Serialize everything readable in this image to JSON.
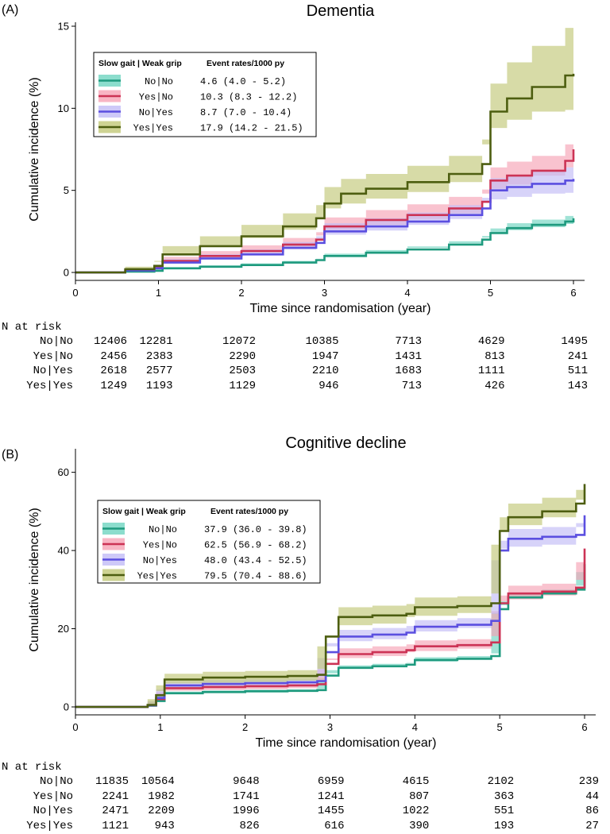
{
  "chart_data": [
    {
      "type": "line",
      "panel_label": "(A)",
      "title": "Dementia",
      "xlabel": "Time since randomisation (year)",
      "ylabel": "Cumulative incidence (%)",
      "xlim": [
        0,
        6
      ],
      "ylim": [
        0,
        15
      ],
      "xticks": [
        "0",
        "1",
        "2",
        "3",
        "4",
        "5",
        "6"
      ],
      "yticks": [
        "0",
        "5",
        "10",
        "15"
      ],
      "legend": {
        "placement": "top-left",
        "header_group": "Slow gait | Weak grip",
        "header_rate": "Event rates/1000 py",
        "entries": [
          {
            "label": "No|No",
            "rate": "4.6 (4.0 - 5.2)"
          },
          {
            "label": "Yes|No",
            "rate": "10.3 (8.3 - 12.2)"
          },
          {
            "label": "No|Yes",
            "rate": "8.7 (7.0 - 10.4)"
          },
          {
            "label": "Yes|Yes",
            "rate": "17.9 (14.2 - 21.5)"
          }
        ]
      },
      "series": [
        {
          "name": "No|No",
          "color": "#1e9a7e",
          "band": "#6fd4c0",
          "x": [
            0,
            0.6,
            0.95,
            1.05,
            1.5,
            2.0,
            2.5,
            2.9,
            3.0,
            3.5,
            4.0,
            4.5,
            4.9,
            5.0,
            5.2,
            5.5,
            5.9,
            6.0
          ],
          "y": [
            0,
            0.05,
            0.1,
            0.25,
            0.35,
            0.45,
            0.6,
            0.75,
            1.0,
            1.2,
            1.4,
            1.7,
            2.0,
            2.4,
            2.7,
            2.9,
            3.1,
            3.3
          ],
          "lower": [
            0,
            0.02,
            0.06,
            0.18,
            0.27,
            0.36,
            0.5,
            0.63,
            0.86,
            1.04,
            1.22,
            1.5,
            1.78,
            2.12,
            2.4,
            2.58,
            2.76,
            2.95
          ],
          "upper": [
            0,
            0.08,
            0.14,
            0.32,
            0.43,
            0.55,
            0.7,
            0.87,
            1.14,
            1.36,
            1.58,
            1.9,
            2.22,
            2.68,
            3.0,
            3.22,
            3.44,
            3.7
          ]
        },
        {
          "name": "Yes|No",
          "color": "#cc3355",
          "band": "#f6a3b5",
          "x": [
            0,
            0.6,
            0.95,
            1.05,
            1.5,
            2.0,
            2.5,
            2.9,
            3.0,
            3.5,
            4.0,
            4.5,
            4.9,
            5.0,
            5.2,
            5.5,
            5.9,
            6.0
          ],
          "y": [
            0,
            0.15,
            0.3,
            0.7,
            1.0,
            1.3,
            1.7,
            2.0,
            2.8,
            3.2,
            3.5,
            3.9,
            4.3,
            5.6,
            5.9,
            6.2,
            6.8,
            7.5
          ],
          "lower": [
            0,
            0.05,
            0.15,
            0.45,
            0.7,
            0.95,
            1.3,
            1.55,
            2.25,
            2.6,
            2.9,
            3.25,
            3.6,
            4.8,
            5.1,
            5.35,
            5.9,
            6.4
          ],
          "upper": [
            0,
            0.25,
            0.45,
            0.95,
            1.3,
            1.65,
            2.1,
            2.45,
            3.35,
            3.8,
            4.15,
            4.6,
            5.05,
            6.4,
            6.75,
            7.1,
            7.8,
            9.4
          ]
        },
        {
          "name": "No|Yes",
          "color": "#5b4fe0",
          "band": "#c2bcf6",
          "x": [
            0,
            0.6,
            0.95,
            1.05,
            1.5,
            2.0,
            2.5,
            2.9,
            3.0,
            3.5,
            4.0,
            4.5,
            4.9,
            5.0,
            5.2,
            5.5,
            5.9,
            6.0
          ],
          "y": [
            0,
            0.12,
            0.25,
            0.6,
            0.85,
            1.1,
            1.5,
            1.8,
            2.5,
            2.8,
            3.1,
            3.5,
            3.9,
            5.0,
            5.2,
            5.4,
            5.6,
            5.7
          ],
          "lower": [
            0,
            0.05,
            0.12,
            0.38,
            0.6,
            0.8,
            1.15,
            1.4,
            2.0,
            2.3,
            2.55,
            2.9,
            3.25,
            4.25,
            4.45,
            4.6,
            4.8,
            4.85
          ],
          "upper": [
            0,
            0.2,
            0.38,
            0.82,
            1.1,
            1.4,
            1.85,
            2.2,
            3.0,
            3.3,
            3.65,
            4.1,
            4.55,
            5.75,
            5.95,
            6.2,
            6.4,
            6.7
          ]
        },
        {
          "name": "Yes|Yes",
          "color": "#4d5e10",
          "band": "#c2c878",
          "x": [
            0,
            0.6,
            0.95,
            1.05,
            1.5,
            2.0,
            2.5,
            2.9,
            3.0,
            3.2,
            3.5,
            4.0,
            4.5,
            4.9,
            5.0,
            5.2,
            5.5,
            5.9,
            6.0
          ],
          "y": [
            0,
            0.2,
            0.4,
            1.1,
            1.6,
            2.2,
            2.8,
            3.3,
            4.2,
            4.8,
            5.1,
            5.5,
            6.0,
            6.6,
            9.8,
            10.6,
            11.3,
            12.0,
            12.1
          ],
          "lower": [
            0,
            0.05,
            0.15,
            0.7,
            1.1,
            1.6,
            2.1,
            2.6,
            3.3,
            3.9,
            4.2,
            4.5,
            4.9,
            5.5,
            8.1,
            8.8,
            9.3,
            9.8,
            9.9
          ],
          "upper": [
            0,
            0.35,
            0.65,
            1.6,
            2.2,
            2.9,
            3.6,
            4.1,
            5.2,
            5.7,
            6.0,
            6.5,
            7.1,
            7.8,
            11.5,
            12.8,
            13.8,
            14.9,
            15.0
          ]
        }
      ],
      "risk_table": {
        "header": "N at risk",
        "rows": [
          {
            "label": "No|No",
            "values": [
              "12406",
              "12281",
              "12072",
              "10385",
              "7713",
              "4629",
              "1495"
            ]
          },
          {
            "label": "Yes|No",
            "values": [
              "2456",
              "2383",
              "2290",
              "1947",
              "1431",
              "813",
              "241"
            ]
          },
          {
            "label": "No|Yes",
            "values": [
              "2618",
              "2577",
              "2503",
              "2210",
              "1683",
              "1111",
              "511"
            ]
          },
          {
            "label": "Yes|Yes",
            "values": [
              "1249",
              "1193",
              "1129",
              "946",
              "713",
              "426",
              "143"
            ]
          }
        ]
      }
    },
    {
      "type": "line",
      "panel_label": "(B)",
      "title": "Cognitive decline",
      "xlabel": "Time since randomisation (year)",
      "ylabel": "Cumulative incidence (%)",
      "xlim": [
        0,
        6
      ],
      "ylim": [
        0,
        65
      ],
      "xticks": [
        "0",
        "1",
        "2",
        "3",
        "4",
        "5",
        "6"
      ],
      "yticks": [
        "0",
        "20",
        "40",
        "60"
      ],
      "legend": {
        "placement": "top-left",
        "header_group": "Slow gait | Weak grip",
        "header_rate": "Event rates/1000 py",
        "entries": [
          {
            "label": "No|No",
            "rate": "37.9 (36.0 - 39.8)"
          },
          {
            "label": "Yes|No",
            "rate": "62.5 (56.9 - 68.2)"
          },
          {
            "label": "No|Yes",
            "rate": "48.0 (43.4 - 52.5)"
          },
          {
            "label": "Yes|Yes",
            "rate": "79.5 (70.4 - 88.6)"
          }
        ]
      },
      "series": [
        {
          "name": "No|No",
          "color": "#1e9a7e",
          "band": "#6fd4c0",
          "x": [
            0,
            0.85,
            0.95,
            1.05,
            1.5,
            2.0,
            2.5,
            2.85,
            2.95,
            3.1,
            3.5,
            3.9,
            4.0,
            4.5,
            4.9,
            5.0,
            5.1,
            5.5,
            5.9,
            6.0
          ],
          "y": [
            0,
            0.3,
            1.5,
            3.5,
            3.8,
            4.0,
            4.1,
            4.3,
            8.0,
            10.0,
            10.4,
            10.8,
            12.0,
            12.3,
            13.0,
            25.0,
            28.0,
            29.0,
            30.0,
            36.5
          ],
          "lower": [
            0,
            0.2,
            1.2,
            3.1,
            3.4,
            3.6,
            3.7,
            3.9,
            7.4,
            9.4,
            9.8,
            10.2,
            11.3,
            11.6,
            12.3,
            24.0,
            27.0,
            28.0,
            29.0,
            34.5
          ],
          "upper": [
            0,
            0.4,
            1.8,
            3.9,
            4.2,
            4.4,
            4.5,
            4.7,
            8.6,
            10.6,
            11.0,
            11.4,
            12.7,
            13.0,
            13.7,
            26.0,
            29.0,
            30.0,
            31.0,
            38.5
          ]
        },
        {
          "name": "Yes|No",
          "color": "#cc3355",
          "band": "#f6a3b5",
          "x": [
            0,
            0.85,
            0.95,
            1.05,
            1.5,
            2.0,
            2.5,
            2.85,
            2.95,
            3.1,
            3.5,
            3.9,
            4.0,
            4.5,
            4.9,
            5.0,
            5.1,
            5.5,
            5.9,
            6.0
          ],
          "y": [
            0,
            0.4,
            2.0,
            4.8,
            5.1,
            5.3,
            5.5,
            5.8,
            11.0,
            13.5,
            14.0,
            14.5,
            15.5,
            15.8,
            16.5,
            26.5,
            29.0,
            29.5,
            30.5,
            40.5
          ],
          "lower": [
            0,
            0.2,
            1.3,
            3.8,
            4.1,
            4.3,
            4.5,
            4.8,
            9.6,
            12.0,
            12.5,
            13.0,
            14.0,
            14.3,
            14.9,
            24.5,
            27.0,
            27.5,
            28.5,
            37.0
          ],
          "upper": [
            0,
            0.6,
            2.7,
            5.8,
            6.1,
            6.3,
            6.5,
            6.8,
            12.4,
            15.0,
            15.5,
            16.0,
            17.0,
            17.3,
            18.1,
            28.5,
            31.0,
            31.5,
            32.5,
            44.0
          ]
        },
        {
          "name": "No|Yes",
          "color": "#5b4fe0",
          "band": "#c2bcf6",
          "x": [
            0,
            0.85,
            0.95,
            1.05,
            1.5,
            2.0,
            2.5,
            2.85,
            2.95,
            3.1,
            3.5,
            3.9,
            4.0,
            4.5,
            4.9,
            5.0,
            5.1,
            5.5,
            5.9,
            6.0
          ],
          "y": [
            0,
            0.4,
            2.3,
            5.5,
            5.9,
            6.1,
            6.3,
            6.6,
            14.0,
            18.0,
            18.5,
            19.0,
            20.5,
            21.0,
            22.0,
            40.0,
            43.0,
            43.5,
            44.0,
            49.0
          ],
          "lower": [
            0,
            0.2,
            1.5,
            4.5,
            4.9,
            5.1,
            5.3,
            5.6,
            12.5,
            16.3,
            16.8,
            17.3,
            18.8,
            19.3,
            20.2,
            37.5,
            40.5,
            41.0,
            41.5,
            46.0
          ],
          "upper": [
            0,
            0.6,
            3.1,
            6.5,
            6.9,
            7.1,
            7.3,
            7.6,
            15.5,
            19.7,
            20.2,
            20.7,
            22.2,
            22.7,
            23.8,
            42.5,
            45.5,
            46.0,
            47.0,
            52.0
          ]
        },
        {
          "name": "Yes|Yes",
          "color": "#4d5e10",
          "band": "#c2c878",
          "x": [
            0,
            0.85,
            0.95,
            1.05,
            1.5,
            2.0,
            2.5,
            2.85,
            2.95,
            3.1,
            3.5,
            3.9,
            4.0,
            4.5,
            4.9,
            5.0,
            5.1,
            5.5,
            5.9,
            6.0
          ],
          "y": [
            0,
            0.5,
            3.0,
            7.0,
            7.5,
            7.7,
            7.9,
            8.2,
            18.0,
            23.0,
            23.4,
            23.8,
            25.5,
            25.8,
            26.5,
            45.0,
            48.5,
            50.0,
            52.0,
            57.0
          ],
          "lower": [
            0,
            0.2,
            2.0,
            5.5,
            6.0,
            6.2,
            6.4,
            6.7,
            15.5,
            20.5,
            20.9,
            21.3,
            23.0,
            23.3,
            24.0,
            41.5,
            45.0,
            46.5,
            48.5,
            53.0
          ],
          "upper": [
            0,
            0.8,
            4.0,
            8.5,
            9.0,
            9.2,
            9.4,
            9.7,
            20.5,
            25.5,
            25.9,
            26.3,
            28.0,
            28.3,
            29.0,
            48.5,
            52.0,
            53.5,
            55.5,
            62.0
          ]
        }
      ],
      "risk_table": {
        "header": "N at risk",
        "rows": [
          {
            "label": "No|No",
            "values": [
              "11835",
              "10564",
              "9648",
              "6959",
              "4615",
              "2102",
              "239"
            ]
          },
          {
            "label": "Yes|No",
            "values": [
              "2241",
              "1982",
              "1741",
              "1241",
              "807",
              "363",
              "44"
            ]
          },
          {
            "label": "No|Yes",
            "values": [
              "2471",
              "2209",
              "1996",
              "1455",
              "1022",
              "551",
              "86"
            ]
          },
          {
            "label": "Yes|Yes",
            "values": [
              "1121",
              "943",
              "826",
              "616",
              "390",
              "193",
              "27"
            ]
          }
        ]
      }
    }
  ]
}
